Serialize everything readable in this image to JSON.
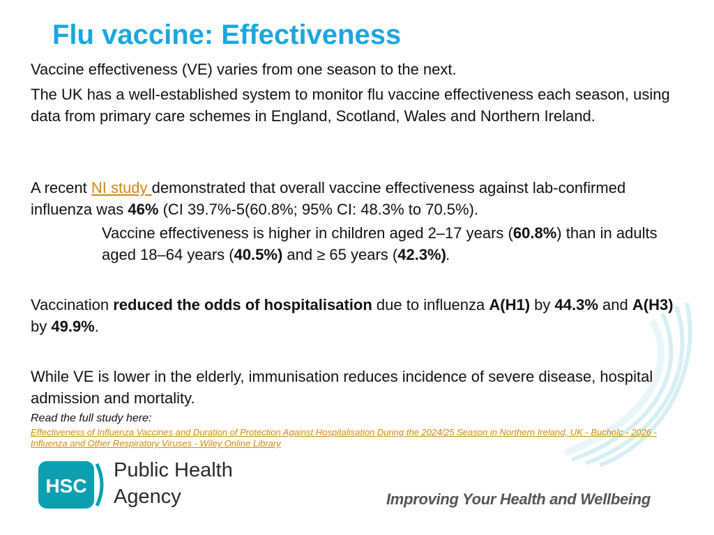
{
  "title": "Flu vaccine: Effectiveness",
  "intro": "Vaccine effectiveness (VE) varies from one season to the next.",
  "uk_system": "The UK has a well-established system to monitor flu vaccine effectiveness each season, using data from primary care schemes in England, Scotland, Wales and Northern Ireland.",
  "study_para": {
    "prefix": "A recent ",
    "link_text": "NI study ",
    "middle": "demonstrated that overall vaccine effectiveness against lab-confirmed influenza was ",
    "overall_value": "46%",
    "suffix": " (CI 39.7%-5(60.8%; 95% CI: 48.3% to 70.5%)."
  },
  "age_para": {
    "part1": "Vaccine effectiveness is higher in children aged 2–17 years (",
    "children_value": "60.8%",
    "part2": ") than in adults aged 18–64 years (",
    "adults_value": "40.5%)",
    "part3": " and ≥ 65 years (",
    "elderly_value": "42.3%)",
    "part4": "."
  },
  "hosp_para": {
    "part1": "Vaccination ",
    "bold1": "reduced the odds of hospitalisation",
    "part2": " due to influenza ",
    "strain1": "A(H1)",
    "part3": " by ",
    "value1": "44.3%",
    "part4": " and ",
    "strain2": "A(H3)",
    "part5": " by ",
    "value2": "49.9%",
    "part6": "."
  },
  "elderly_para": "While VE is lower in the elderly, immunisation reduces incidence of severe disease, hospital admission and mortality.",
  "read_here": "Read the full study here:",
  "study_link_text": "Effectiveness of Influenza Vaccines and Duration of Protection Against Hospitalisation During the 2024/25 Season in Northern Ireland, UK - Bucholc - 2026 - Influenza and Other Respiratory Viruses - Wiley Online Library",
  "logo": {
    "badge": "HSC",
    "line1": "Public Health",
    "line2": "Agency"
  },
  "tagline": "Improving Your Health and Wellbeing",
  "colors": {
    "title": "#1aa7e0",
    "link": "#d08a12",
    "logo_teal": "#0b9fb0",
    "tagline": "#545454"
  }
}
